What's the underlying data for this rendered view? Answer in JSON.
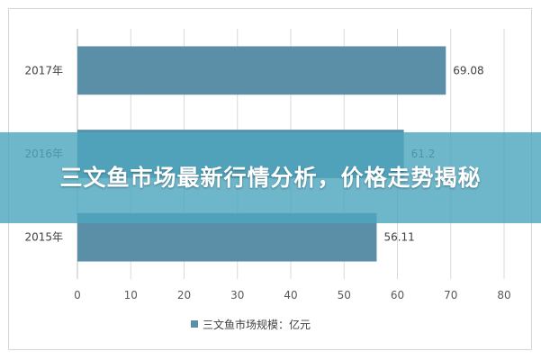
{
  "banner": {
    "title": "三文鱼市场最新行情分析，价格走势揭秘",
    "color": "#4ea6be"
  },
  "chart_data": {
    "type": "bar",
    "orientation": "horizontal",
    "categories": [
      "2017年",
      "2016年",
      "2015年"
    ],
    "series": [
      {
        "name": "三文鱼市场规模：亿元",
        "values": [
          69.08,
          61.2,
          56.11
        ],
        "color": "#5b8fa8"
      }
    ],
    "data_labels": [
      "69.08",
      "61.2",
      "56.11"
    ],
    "x_ticks": [
      0,
      10,
      20,
      30,
      40,
      50,
      60,
      70,
      80
    ],
    "xlim": [
      0,
      80
    ],
    "grid": true,
    "legend_position": "bottom",
    "title": "",
    "xlabel": "",
    "ylabel": ""
  }
}
